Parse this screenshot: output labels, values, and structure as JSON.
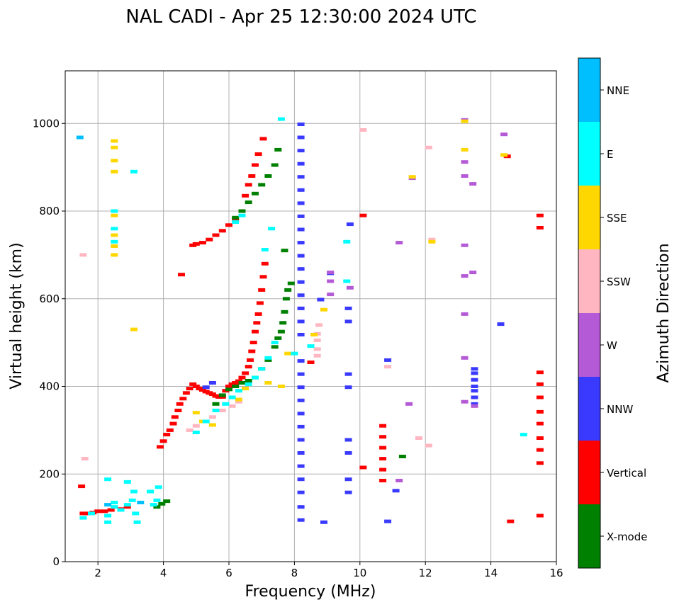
{
  "chart_data": {
    "type": "scatter",
    "title": "NAL CADI - Apr 25 12:30:00 2024 UTC",
    "xlabel": "Frequency (MHz)",
    "ylabel": "Virtual height (km)",
    "xlim": [
      1,
      16
    ],
    "ylim": [
      0,
      1120
    ],
    "xticks": [
      2,
      4,
      6,
      8,
      10,
      12,
      14,
      16
    ],
    "yticks": [
      0,
      200,
      400,
      600,
      800,
      1000
    ],
    "grid": true,
    "colorbar": {
      "label": "Azimuth Direction",
      "categories": [
        {
          "name": "X-mode",
          "color": "#008000"
        },
        {
          "name": "Vertical",
          "color": "#ff0000"
        },
        {
          "name": "NNW",
          "color": "#3a3aff"
        },
        {
          "name": "W",
          "color": "#b45ad6"
        },
        {
          "name": "SSW",
          "color": "#ffb6c1"
        },
        {
          "name": "SSE",
          "color": "#ffd700"
        },
        {
          "name": "E",
          "color": "#00ffff"
        },
        {
          "name": "NNE",
          "color": "#00bfff"
        }
      ]
    },
    "series": [
      {
        "name": "Vertical",
        "points": [
          [
            1.55,
            110
          ],
          [
            1.7,
            110
          ],
          [
            1.85,
            112
          ],
          [
            2.0,
            115
          ],
          [
            2.2,
            115
          ],
          [
            2.4,
            118
          ],
          [
            2.7,
            120
          ],
          [
            2.9,
            125
          ],
          [
            3.9,
            262
          ],
          [
            4.0,
            275
          ],
          [
            4.1,
            290
          ],
          [
            4.2,
            300
          ],
          [
            4.3,
            315
          ],
          [
            4.35,
            330
          ],
          [
            4.45,
            345
          ],
          [
            4.5,
            360
          ],
          [
            4.6,
            372
          ],
          [
            4.7,
            385
          ],
          [
            4.8,
            395
          ],
          [
            4.9,
            405
          ],
          [
            5.0,
            400
          ],
          [
            5.1,
            395
          ],
          [
            5.2,
            392
          ],
          [
            5.3,
            388
          ],
          [
            5.4,
            385
          ],
          [
            5.5,
            382
          ],
          [
            5.6,
            378
          ],
          [
            5.7,
            376
          ],
          [
            5.8,
            376
          ],
          [
            5.9,
            390
          ],
          [
            6.0,
            400
          ],
          [
            6.1,
            405
          ],
          [
            6.2,
            408
          ],
          [
            6.3,
            412
          ],
          [
            6.4,
            420
          ],
          [
            6.5,
            430
          ],
          [
            6.6,
            445
          ],
          [
            6.65,
            460
          ],
          [
            6.7,
            480
          ],
          [
            6.75,
            500
          ],
          [
            6.8,
            525
          ],
          [
            6.85,
            545
          ],
          [
            6.9,
            565
          ],
          [
            6.95,
            590
          ],
          [
            7.0,
            620
          ],
          [
            7.05,
            650
          ],
          [
            7.1,
            680
          ],
          [
            4.55,
            655
          ],
          [
            4.9,
            722
          ],
          [
            5.0,
            725
          ],
          [
            5.2,
            728
          ],
          [
            5.4,
            735
          ],
          [
            5.6,
            745
          ],
          [
            5.8,
            755
          ],
          [
            6.0,
            768
          ],
          [
            6.2,
            780
          ],
          [
            6.4,
            800
          ],
          [
            6.5,
            835
          ],
          [
            6.6,
            860
          ],
          [
            6.7,
            880
          ],
          [
            6.8,
            905
          ],
          [
            6.9,
            930
          ],
          [
            7.05,
            965
          ],
          [
            10.7,
            185
          ],
          [
            10.7,
            210
          ],
          [
            10.7,
            235
          ],
          [
            10.7,
            260
          ],
          [
            10.7,
            285
          ],
          [
            10.7,
            310
          ],
          [
            10.1,
            215
          ],
          [
            10.1,
            790
          ],
          [
            8.5,
            455
          ],
          [
            14.5,
            925
          ],
          [
            14.6,
            92
          ],
          [
            15.5,
            105
          ],
          [
            15.5,
            225
          ],
          [
            15.5,
            255
          ],
          [
            15.5,
            282
          ],
          [
            15.5,
            315
          ],
          [
            15.5,
            342
          ],
          [
            15.5,
            375
          ],
          [
            15.5,
            405
          ],
          [
            15.5,
            432
          ],
          [
            15.5,
            762
          ],
          [
            15.5,
            790
          ],
          [
            1.5,
            172
          ]
        ]
      },
      {
        "name": "X-mode",
        "points": [
          [
            3.8,
            125
          ],
          [
            3.95,
            132
          ],
          [
            4.1,
            138
          ],
          [
            5.6,
            360
          ],
          [
            5.8,
            380
          ],
          [
            6.0,
            393
          ],
          [
            6.2,
            400
          ],
          [
            6.4,
            408
          ],
          [
            6.6,
            413
          ],
          [
            6.8,
            420
          ],
          [
            7.0,
            440
          ],
          [
            7.2,
            460
          ],
          [
            7.4,
            490
          ],
          [
            7.5,
            510
          ],
          [
            7.6,
            525
          ],
          [
            7.65,
            545
          ],
          [
            7.7,
            570
          ],
          [
            7.75,
            600
          ],
          [
            7.8,
            620
          ],
          [
            7.9,
            635
          ],
          [
            6.2,
            785
          ],
          [
            6.4,
            800
          ],
          [
            6.6,
            820
          ],
          [
            6.8,
            840
          ],
          [
            7.0,
            860
          ],
          [
            7.2,
            880
          ],
          [
            7.4,
            905
          ],
          [
            7.5,
            940
          ],
          [
            7.7,
            710
          ],
          [
            11.3,
            240
          ]
        ]
      },
      {
        "name": "NNW",
        "points": [
          [
            8.2,
            95
          ],
          [
            8.2,
            125
          ],
          [
            8.2,
            158
          ],
          [
            8.2,
            188
          ],
          [
            8.2,
            218
          ],
          [
            8.2,
            248
          ],
          [
            8.2,
            278
          ],
          [
            8.2,
            308
          ],
          [
            8.2,
            338
          ],
          [
            8.2,
            368
          ],
          [
            8.2,
            398
          ],
          [
            8.2,
            428
          ],
          [
            8.2,
            458
          ],
          [
            8.2,
            518
          ],
          [
            8.2,
            548
          ],
          [
            8.2,
            578
          ],
          [
            8.2,
            608
          ],
          [
            8.2,
            638
          ],
          [
            8.2,
            668
          ],
          [
            8.2,
            698
          ],
          [
            8.2,
            728
          ],
          [
            8.2,
            758
          ],
          [
            8.2,
            788
          ],
          [
            8.2,
            818
          ],
          [
            8.2,
            848
          ],
          [
            8.2,
            878
          ],
          [
            8.2,
            908
          ],
          [
            8.2,
            938
          ],
          [
            8.2,
            968
          ],
          [
            8.2,
            998
          ],
          [
            8.9,
            90
          ],
          [
            10.85,
            92
          ],
          [
            11.1,
            162
          ],
          [
            9.65,
            158
          ],
          [
            9.65,
            188
          ],
          [
            9.65,
            248
          ],
          [
            9.65,
            278
          ],
          [
            9.65,
            398
          ],
          [
            9.65,
            428
          ],
          [
            9.65,
            548
          ],
          [
            9.65,
            578
          ],
          [
            8.8,
            598
          ],
          [
            9.1,
            658
          ],
          [
            9.7,
            770
          ],
          [
            10.85,
            460
          ],
          [
            13.5,
            360
          ],
          [
            13.5,
            375
          ],
          [
            13.5,
            390
          ],
          [
            13.5,
            400
          ],
          [
            13.5,
            415
          ],
          [
            13.5,
            430
          ],
          [
            13.5,
            440
          ],
          [
            14.3,
            542
          ],
          [
            5.3,
            398
          ],
          [
            5.5,
            408
          ]
        ]
      },
      {
        "name": "W",
        "points": [
          [
            9.1,
            610
          ],
          [
            9.1,
            640
          ],
          [
            9.1,
            660
          ],
          [
            9.7,
            625
          ],
          [
            11.2,
            185
          ],
          [
            11.5,
            360
          ],
          [
            11.2,
            728
          ],
          [
            11.6,
            875
          ],
          [
            13.2,
            365
          ],
          [
            13.2,
            465
          ],
          [
            13.2,
            565
          ],
          [
            13.2,
            652
          ],
          [
            13.2,
            722
          ],
          [
            13.2,
            880
          ],
          [
            13.2,
            912
          ],
          [
            13.2,
            1008
          ],
          [
            13.45,
            660
          ],
          [
            13.45,
            862
          ],
          [
            14.4,
            975
          ],
          [
            13.5,
            355
          ]
        ]
      },
      {
        "name": "SSW",
        "points": [
          [
            1.55,
            700
          ],
          [
            1.6,
            235
          ],
          [
            4.8,
            300
          ],
          [
            5.0,
            310
          ],
          [
            5.2,
            320
          ],
          [
            5.5,
            330
          ],
          [
            5.8,
            345
          ],
          [
            6.1,
            355
          ],
          [
            6.3,
            365
          ],
          [
            8.7,
            470
          ],
          [
            8.7,
            485
          ],
          [
            8.7,
            505
          ],
          [
            8.7,
            520
          ],
          [
            8.75,
            540
          ],
          [
            10.1,
            985
          ],
          [
            10.85,
            445
          ],
          [
            11.8,
            282
          ],
          [
            12.1,
            265
          ],
          [
            12.1,
            945
          ],
          [
            12.2,
            735
          ]
        ]
      },
      {
        "name": "SSE",
        "points": [
          [
            2.5,
            890
          ],
          [
            2.5,
            915
          ],
          [
            2.5,
            945
          ],
          [
            2.5,
            960
          ],
          [
            2.5,
            700
          ],
          [
            2.5,
            720
          ],
          [
            2.5,
            745
          ],
          [
            2.5,
            790
          ],
          [
            3.1,
            530
          ],
          [
            5.0,
            340
          ],
          [
            5.2,
            320
          ],
          [
            5.5,
            312
          ],
          [
            6.3,
            370
          ],
          [
            6.5,
            395
          ],
          [
            7.2,
            408
          ],
          [
            7.6,
            400
          ],
          [
            7.8,
            475
          ],
          [
            8.6,
            518
          ],
          [
            8.9,
            575
          ],
          [
            11.6,
            878
          ],
          [
            12.2,
            730
          ],
          [
            13.2,
            940
          ],
          [
            13.2,
            1005
          ],
          [
            14.4,
            928
          ]
        ]
      },
      {
        "name": "E",
        "points": [
          [
            1.55,
            100
          ],
          [
            1.8,
            110
          ],
          [
            2.3,
            105
          ],
          [
            2.3,
            90
          ],
          [
            2.5,
            125
          ],
          [
            2.5,
            135
          ],
          [
            2.7,
            118
          ],
          [
            2.9,
            130
          ],
          [
            3.05,
            140
          ],
          [
            3.1,
            160
          ],
          [
            3.15,
            110
          ],
          [
            3.2,
            90
          ],
          [
            3.6,
            160
          ],
          [
            3.7,
            130
          ],
          [
            3.8,
            140
          ],
          [
            3.85,
            170
          ],
          [
            2.5,
            730
          ],
          [
            2.5,
            760
          ],
          [
            2.5,
            800
          ],
          [
            3.1,
            890
          ],
          [
            5.0,
            295
          ],
          [
            5.3,
            320
          ],
          [
            5.6,
            345
          ],
          [
            5.9,
            360
          ],
          [
            6.1,
            375
          ],
          [
            6.3,
            390
          ],
          [
            6.6,
            405
          ],
          [
            6.8,
            420
          ],
          [
            7.0,
            440
          ],
          [
            7.2,
            465
          ],
          [
            7.4,
            500
          ],
          [
            6.2,
            775
          ],
          [
            6.4,
            790
          ],
          [
            7.3,
            760
          ],
          [
            7.6,
            1010
          ],
          [
            7.1,
            712
          ],
          [
            8.0,
            475
          ],
          [
            8.5,
            492
          ],
          [
            9.6,
            730
          ],
          [
            9.6,
            640
          ],
          [
            15.0,
            290
          ],
          [
            2.3,
            188
          ],
          [
            2.9,
            182
          ]
        ]
      },
      {
        "name": "NNE",
        "points": [
          [
            1.45,
            968
          ],
          [
            2.3,
            130
          ],
          [
            3.3,
            135
          ]
        ]
      }
    ]
  }
}
